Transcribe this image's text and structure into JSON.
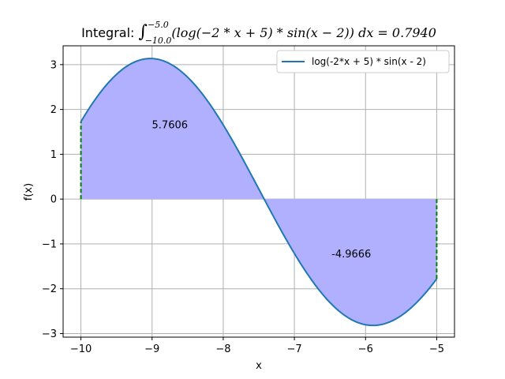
{
  "chart_data": {
    "type": "area",
    "title": {
      "prefix": "Integral: ",
      "upper": "−5.0",
      "lower": "−10.0",
      "integrand": "(log(−2 * x + 5) * sin(x − 2)) dx = 0.7940"
    },
    "xlabel": "x",
    "ylabel": "f(x)",
    "xlim": [
      -10.25,
      -4.75
    ],
    "ylim": [
      -3.08,
      3.42
    ],
    "xticks": [
      -10,
      -9,
      -8,
      -7,
      -6,
      -5
    ],
    "xtick_labels": [
      "−10",
      "−9",
      "−8",
      "−7",
      "−6",
      "−5"
    ],
    "yticks": [
      -3,
      -2,
      -1,
      0,
      1,
      2,
      3
    ],
    "ytick_labels": [
      "−3",
      "−2",
      "−1",
      "0",
      "1",
      "2",
      "3"
    ],
    "grid": true,
    "legend_position": "top-right",
    "series": [
      {
        "name": "log(-2*x + 5) * sin(x - 2)",
        "color": "#1f77b4",
        "x": [
          -10.0,
          -9.75,
          -9.5,
          -9.25,
          -9.0,
          -8.75,
          -8.5,
          -8.25,
          -8.0,
          -7.75,
          -7.5,
          -7.25,
          -7.0,
          -6.75,
          -6.5,
          -6.25,
          -6.0,
          -5.75,
          -5.5,
          -5.25,
          -5.0
        ],
        "y": [
          1.7277,
          2.3158,
          2.7498,
          3.0297,
          3.1317,
          3.0501,
          2.7925,
          2.3725,
          1.8173,
          1.163,
          0.4449,
          -0.2969,
          -1.0305,
          -1.7103,
          -2.2782,
          -2.6643,
          -2.8107,
          -2.76,
          -2.5311,
          -2.1707,
          -1.7505
        ]
      }
    ],
    "fill_color": "#b0b0ff",
    "boundary_color": "#008000",
    "bounds": [
      -10.0,
      -5.0
    ],
    "area_labels": [
      {
        "text": "5.7606",
        "x": -8.75,
        "y": 1.58
      },
      {
        "text": "-4.9666",
        "x": -6.2,
        "y": -1.3
      }
    ]
  }
}
